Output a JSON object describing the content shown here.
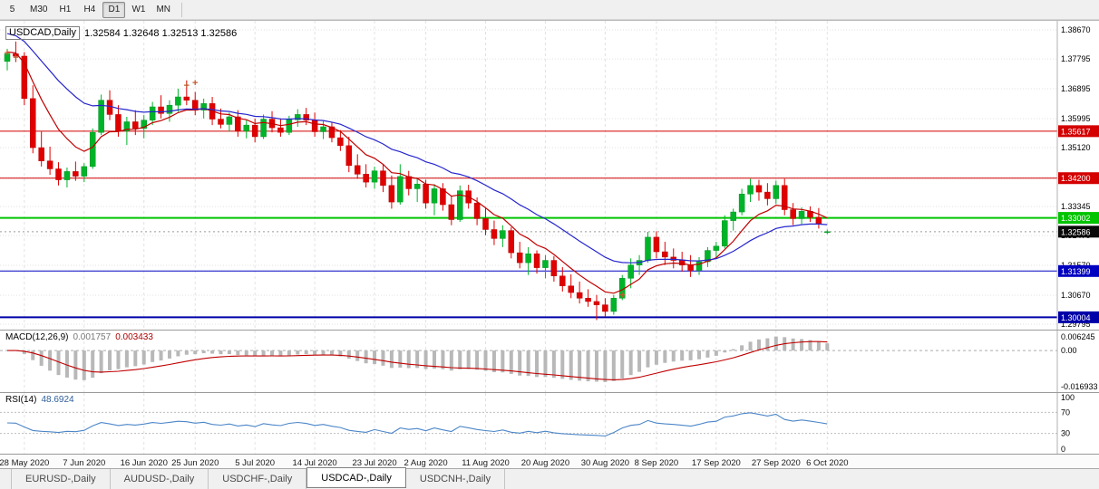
{
  "toolbar": {
    "timeframes": [
      {
        "label": "5",
        "active": false
      },
      {
        "label": "M30",
        "active": false
      },
      {
        "label": "H1",
        "active": false
      },
      {
        "label": "H4",
        "active": false
      },
      {
        "label": "D1",
        "active": true
      },
      {
        "label": "W1",
        "active": false
      },
      {
        "label": "MN",
        "active": false
      }
    ]
  },
  "chart": {
    "title": "USDCAD,Daily",
    "ohlc_readout": "1.32584 1.32648 1.32513 1.32586",
    "y_axis_labels": [
      "1.38670",
      "1.37795",
      "1.36895",
      "1.35995",
      "1.35120",
      "1.34220",
      "1.33345",
      "1.32470",
      "1.31570",
      "1.30670",
      "1.29795"
    ],
    "hlines": [
      {
        "price": 1.35617,
        "label": "1.35617",
        "color": "#D40000",
        "width": 1
      },
      {
        "price": 1.342,
        "label": "1.34200",
        "color": "#D40000",
        "width": 1
      },
      {
        "price": 1.33002,
        "label": "1.33002",
        "color": "#00C400",
        "width": 2
      },
      {
        "price": 1.31399,
        "label": "1.31399",
        "color": "#0000C0",
        "width": 1
      },
      {
        "price": 1.30004,
        "label": "1.30004",
        "color": "#0000A8",
        "width": 2
      }
    ],
    "current_price": {
      "price": 1.32586,
      "label": "1.32586",
      "color": "#0a0a0a"
    },
    "x_labels": [
      {
        "bar": 2,
        "text": "28 May 2020"
      },
      {
        "bar": 9,
        "text": "7 Jun 2020"
      },
      {
        "bar": 16,
        "text": "16 Jun 2020"
      },
      {
        "bar": 22,
        "text": "25 Jun 2020"
      },
      {
        "bar": 29,
        "text": "5 Jul 2020"
      },
      {
        "bar": 36,
        "text": "14 Jul 2020"
      },
      {
        "bar": 43,
        "text": "23 Jul 2020"
      },
      {
        "bar": 49,
        "text": "2 Aug 2020"
      },
      {
        "bar": 56,
        "text": "11 Aug 2020"
      },
      {
        "bar": 63,
        "text": "20 Aug 2020"
      },
      {
        "bar": 70,
        "text": "30 Aug 2020"
      },
      {
        "bar": 76,
        "text": "8 Sep 2020"
      },
      {
        "bar": 83,
        "text": "17 Sep 2020"
      },
      {
        "bar": 90,
        "text": "27 Sep 2020"
      },
      {
        "bar": 96,
        "text": "6 Oct 2020"
      }
    ],
    "markers": [
      {
        "bar": 0,
        "price": 1.3796
      },
      {
        "bar": 1,
        "price": 1.3782
      },
      {
        "bar": 21,
        "price": 1.3698
      },
      {
        "bar": 22,
        "price": 1.3706
      },
      {
        "bar": 72,
        "price": 1.3066
      }
    ],
    "moving_averages": [
      {
        "name": "ma-fast-red",
        "color": "#C00000",
        "period": 8,
        "seed": 1.3802
      },
      {
        "name": "ma-slow-blue",
        "color": "#2626CE",
        "period": 21,
        "seed": 1.3862
      }
    ],
    "colors": {
      "up": "#00B42A",
      "up_stroke": "#009422",
      "down": "#E00000",
      "down_stroke": "#BC0000",
      "grid": "#E2E2E2",
      "marker": "#C05A2A"
    },
    "candles": [
      [
        1.3772,
        1.381,
        1.3745,
        1.3795
      ],
      [
        1.3795,
        1.3832,
        1.377,
        1.3788
      ],
      [
        1.3788,
        1.38,
        1.364,
        1.366
      ],
      [
        1.366,
        1.37,
        1.3495,
        1.3512
      ],
      [
        1.3512,
        1.356,
        1.3455,
        1.3472
      ],
      [
        1.3472,
        1.3515,
        1.343,
        1.3448
      ],
      [
        1.3448,
        1.3468,
        1.3398,
        1.3415
      ],
      [
        1.3415,
        1.3452,
        1.3392,
        1.344
      ],
      [
        1.344,
        1.347,
        1.3412,
        1.3426
      ],
      [
        1.3426,
        1.3465,
        1.3408,
        1.3455
      ],
      [
        1.3455,
        1.357,
        1.3448,
        1.3558
      ],
      [
        1.3558,
        1.3672,
        1.355,
        1.3655
      ],
      [
        1.3655,
        1.3685,
        1.3595,
        1.3612
      ],
      [
        1.3612,
        1.364,
        1.3545,
        1.3562
      ],
      [
        1.3562,
        1.3605,
        1.352,
        1.359
      ],
      [
        1.359,
        1.3625,
        1.355,
        1.357
      ],
      [
        1.357,
        1.361,
        1.354,
        1.3595
      ],
      [
        1.3595,
        1.365,
        1.358,
        1.3635
      ],
      [
        1.3635,
        1.367,
        1.36,
        1.3615
      ],
      [
        1.3615,
        1.3655,
        1.359,
        1.364
      ],
      [
        1.364,
        1.369,
        1.362,
        1.3665
      ],
      [
        1.3665,
        1.3715,
        1.364,
        1.3655
      ],
      [
        1.3655,
        1.368,
        1.361,
        1.3625
      ],
      [
        1.3625,
        1.366,
        1.36,
        1.3645
      ],
      [
        1.3645,
        1.3665,
        1.358,
        1.3598
      ],
      [
        1.3598,
        1.363,
        1.357,
        1.3582
      ],
      [
        1.3582,
        1.3618,
        1.356,
        1.3605
      ],
      [
        1.3605,
        1.3625,
        1.3545,
        1.3562
      ],
      [
        1.3562,
        1.3595,
        1.354,
        1.358
      ],
      [
        1.358,
        1.36,
        1.3528,
        1.3545
      ],
      [
        1.3545,
        1.3612,
        1.3538,
        1.3598
      ],
      [
        1.3598,
        1.3622,
        1.3558,
        1.3572
      ],
      [
        1.3572,
        1.36,
        1.3545,
        1.3558
      ],
      [
        1.3558,
        1.3608,
        1.355,
        1.3596
      ],
      [
        1.3596,
        1.3628,
        1.3575,
        1.3612
      ],
      [
        1.3612,
        1.3632,
        1.358,
        1.3595
      ],
      [
        1.3595,
        1.3618,
        1.3545,
        1.356
      ],
      [
        1.356,
        1.3592,
        1.3538,
        1.3575
      ],
      [
        1.3575,
        1.3588,
        1.3528,
        1.3542
      ],
      [
        1.3542,
        1.3565,
        1.3502,
        1.3518
      ],
      [
        1.3518,
        1.3545,
        1.3438,
        1.3458
      ],
      [
        1.3458,
        1.3492,
        1.3418,
        1.3432
      ],
      [
        1.3432,
        1.3462,
        1.3392,
        1.3408
      ],
      [
        1.3408,
        1.3455,
        1.3388,
        1.3442
      ],
      [
        1.3442,
        1.346,
        1.3378,
        1.3398
      ],
      [
        1.3398,
        1.3428,
        1.3328,
        1.3348
      ],
      [
        1.3348,
        1.3462,
        1.334,
        1.3425
      ],
      [
        1.3425,
        1.3442,
        1.3368,
        1.3388
      ],
      [
        1.3388,
        1.342,
        1.3348,
        1.3402
      ],
      [
        1.3402,
        1.3415,
        1.3328,
        1.3345
      ],
      [
        1.3345,
        1.3402,
        1.3308,
        1.3388
      ],
      [
        1.3388,
        1.3405,
        1.3322,
        1.334
      ],
      [
        1.334,
        1.3365,
        1.3278,
        1.3295
      ],
      [
        1.3295,
        1.3398,
        1.3288,
        1.3382
      ],
      [
        1.3382,
        1.34,
        1.3328,
        1.3345
      ],
      [
        1.3345,
        1.3362,
        1.3278,
        1.3298
      ],
      [
        1.3298,
        1.333,
        1.3248,
        1.3265
      ],
      [
        1.3265,
        1.3292,
        1.3218,
        1.3238
      ],
      [
        1.3238,
        1.3278,
        1.3212,
        1.3262
      ],
      [
        1.3262,
        1.3272,
        1.3178,
        1.3195
      ],
      [
        1.3195,
        1.3228,
        1.3148,
        1.3165
      ],
      [
        1.3165,
        1.3212,
        1.3128,
        1.3192
      ],
      [
        1.3192,
        1.3202,
        1.3132,
        1.315
      ],
      [
        1.315,
        1.3188,
        1.3118,
        1.3172
      ],
      [
        1.3172,
        1.3185,
        1.3108,
        1.3125
      ],
      [
        1.3125,
        1.3152,
        1.3078,
        1.3095
      ],
      [
        1.3095,
        1.313,
        1.3058,
        1.3075
      ],
      [
        1.3075,
        1.3108,
        1.3042,
        1.3058
      ],
      [
        1.3058,
        1.3085,
        1.3032,
        1.3048
      ],
      [
        1.3048,
        1.3068,
        1.2992,
        1.3038
      ],
      [
        1.3038,
        1.3058,
        1.3002,
        1.3018
      ],
      [
        1.3018,
        1.3068,
        1.3008,
        1.3058
      ],
      [
        1.3058,
        1.3128,
        1.3052,
        1.3118
      ],
      [
        1.3118,
        1.3178,
        1.3088,
        1.3158
      ],
      [
        1.3158,
        1.3188,
        1.3128,
        1.3172
      ],
      [
        1.3172,
        1.3258,
        1.3165,
        1.3242
      ],
      [
        1.3242,
        1.326,
        1.3178,
        1.3198
      ],
      [
        1.3198,
        1.3228,
        1.3158,
        1.3182
      ],
      [
        1.3182,
        1.3208,
        1.3148,
        1.3172
      ],
      [
        1.3172,
        1.3198,
        1.3138,
        1.3158
      ],
      [
        1.3158,
        1.3188,
        1.3122,
        1.3142
      ],
      [
        1.3142,
        1.3182,
        1.3128,
        1.3168
      ],
      [
        1.3168,
        1.3212,
        1.3152,
        1.3202
      ],
      [
        1.3202,
        1.3228,
        1.3178,
        1.3215
      ],
      [
        1.3215,
        1.3308,
        1.3208,
        1.3292
      ],
      [
        1.3292,
        1.3328,
        1.3262,
        1.3318
      ],
      [
        1.3318,
        1.3388,
        1.3308,
        1.3372
      ],
      [
        1.3372,
        1.3418,
        1.3348,
        1.3398
      ],
      [
        1.3398,
        1.3415,
        1.3352,
        1.3378
      ],
      [
        1.3378,
        1.3405,
        1.3338,
        1.3358
      ],
      [
        1.3358,
        1.3412,
        1.3342,
        1.3398
      ],
      [
        1.3398,
        1.3418,
        1.3308,
        1.3325
      ],
      [
        1.3325,
        1.3345,
        1.3278,
        1.3298
      ],
      [
        1.3298,
        1.3332,
        1.3282,
        1.332
      ],
      [
        1.332,
        1.3335,
        1.3288,
        1.3302
      ],
      [
        1.3302,
        1.333,
        1.3268,
        1.3282
      ],
      [
        1.32584,
        1.32648,
        1.32513,
        1.32586
      ]
    ]
  },
  "macd": {
    "label": "MACD(12,26,9)",
    "main_value": "0.001757",
    "signal_value": "0.003433",
    "axis_max": "0.006245",
    "axis_zero": "0.00",
    "axis_min": "-0.016933",
    "hist_color": "#B8B8B8",
    "signal_color": "#C00000"
  },
  "rsi": {
    "label": "RSI(14)",
    "value": "48.6924",
    "axis_top": "100",
    "axis_upper": "70",
    "axis_lower": "30",
    "axis_bottom": "0",
    "levels": [
      70,
      30
    ],
    "line_color": "#4C86C8"
  },
  "tabs": [
    {
      "label": "EURUSD-,Daily",
      "active": false
    },
    {
      "label": "AUDUSD-,Daily",
      "active": false
    },
    {
      "label": "USDCHF-,Daily",
      "active": false
    },
    {
      "label": "USDCAD-,Daily",
      "active": true
    },
    {
      "label": "USDCNH-,Daily",
      "active": false
    }
  ]
}
